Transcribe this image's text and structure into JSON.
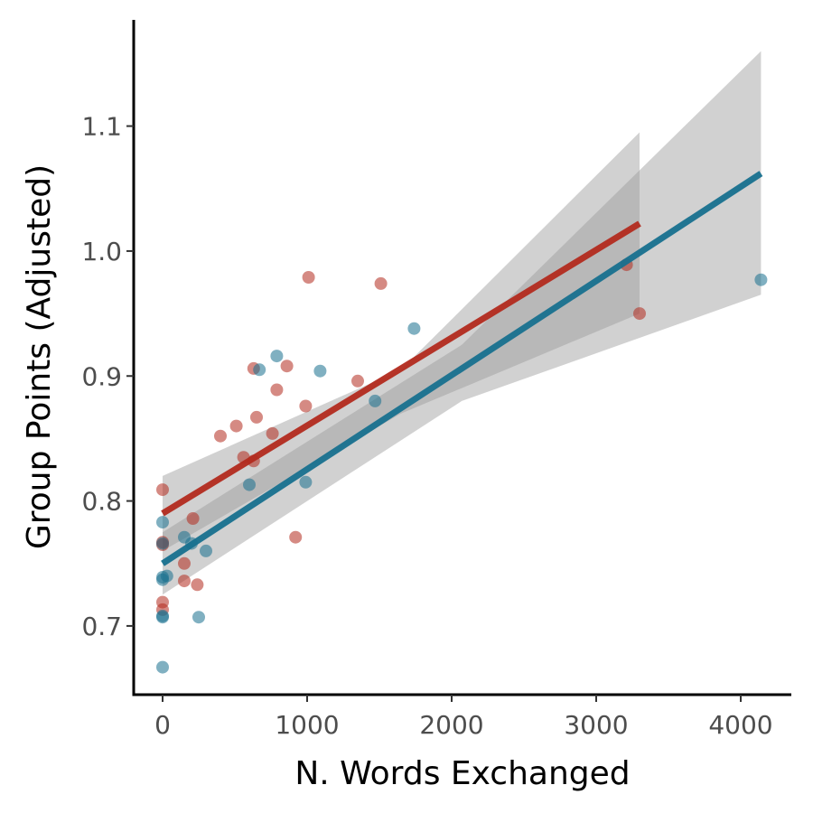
{
  "chart_data": {
    "type": "scatter",
    "xlabel": "N. Words Exchanged",
    "ylabel": "Group Points (Adjusted)",
    "xlim": [
      -200,
      4350
    ],
    "ylim": [
      0.645,
      1.185
    ],
    "x_ticks": [
      0,
      1000,
      2000,
      3000,
      4000
    ],
    "x_tick_labels": [
      "0",
      "1000",
      "2000",
      "3000",
      "4000"
    ],
    "y_ticks": [
      0.7,
      0.8,
      0.9,
      1.0,
      1.1
    ],
    "y_tick_labels": [
      "0.7",
      "0.8",
      "0.9",
      "1.0",
      "1.1"
    ],
    "grid": false,
    "legend": "none",
    "ribbon_color": "#999999",
    "series": [
      {
        "color": "#b22a1d",
        "points": [
          [
            0,
            0.809
          ],
          [
            0,
            0.767
          ],
          [
            0,
            0.765
          ],
          [
            0,
            0.719
          ],
          [
            0,
            0.713
          ],
          [
            150,
            0.75
          ],
          [
            150,
            0.736
          ],
          [
            210,
            0.786
          ],
          [
            240,
            0.733
          ],
          [
            400,
            0.852
          ],
          [
            510,
            0.86
          ],
          [
            560,
            0.835
          ],
          [
            630,
            0.832
          ],
          [
            630,
            0.906
          ],
          [
            650,
            0.867
          ],
          [
            760,
            0.854
          ],
          [
            790,
            0.889
          ],
          [
            860,
            0.908
          ],
          [
            920,
            0.771
          ],
          [
            990,
            0.876
          ],
          [
            1010,
            0.979
          ],
          [
            1350,
            0.896
          ],
          [
            1510,
            0.974
          ],
          [
            3210,
            0.989
          ],
          [
            3300,
            0.95
          ]
        ],
        "fit_line": [
          [
            0,
            0.79
          ],
          [
            3300,
            1.022
          ]
        ],
        "ci_band": {
          "x": [
            0,
            1650,
            3300
          ],
          "lower": [
            0.76,
            0.87,
            0.95
          ],
          "upper": [
            0.82,
            0.905,
            1.095
          ]
        }
      },
      {
        "color": "#17708e",
        "points": [
          [
            0,
            0.783
          ],
          [
            0,
            0.766
          ],
          [
            0,
            0.739
          ],
          [
            0,
            0.737
          ],
          [
            0,
            0.708
          ],
          [
            0,
            0.707
          ],
          [
            0,
            0.667
          ],
          [
            30,
            0.74
          ],
          [
            150,
            0.771
          ],
          [
            200,
            0.766
          ],
          [
            250,
            0.707
          ],
          [
            300,
            0.76
          ],
          [
            600,
            0.813
          ],
          [
            670,
            0.905
          ],
          [
            790,
            0.916
          ],
          [
            990,
            0.815
          ],
          [
            1090,
            0.904
          ],
          [
            1470,
            0.88
          ],
          [
            1740,
            0.938
          ],
          [
            4140,
            0.977
          ]
        ],
        "fit_line": [
          [
            0,
            0.75
          ],
          [
            4140,
            1.062
          ]
        ],
        "ci_band": {
          "x": [
            0,
            2070,
            4140
          ],
          "lower": [
            0.725,
            0.88,
            0.965
          ],
          "upper": [
            0.775,
            0.925,
            1.16
          ]
        }
      }
    ]
  }
}
